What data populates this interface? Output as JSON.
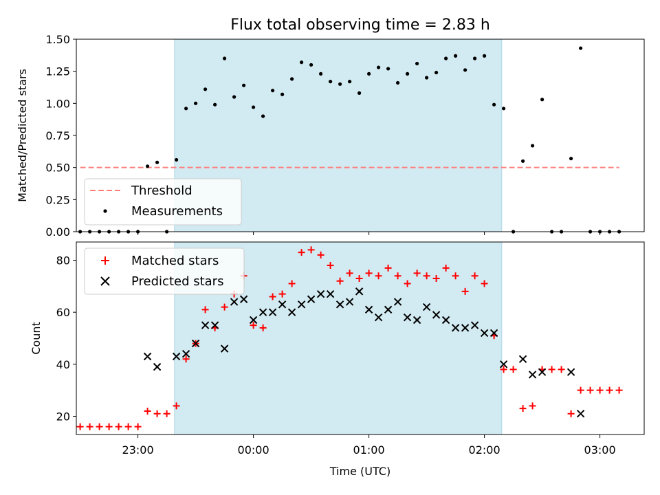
{
  "colors": {
    "span": "#add8e6",
    "threshold": "#ff7f7f",
    "measurement": "#000000",
    "matched": "#ff0000",
    "predicted": "#000000"
  },
  "chart_data": [
    {
      "type": "scatter",
      "panel": "top",
      "title": "Flux total observing time = 2.83 h",
      "xlabel": "",
      "ylabel": "Matched/Predicted stars",
      "ylim": [
        0,
        1.5
      ],
      "yticks": [
        "0.00",
        "0.25",
        "0.50",
        "0.75",
        "1.00",
        "1.25",
        "1.50"
      ],
      "xlim": [
        "22:28",
        "03:23"
      ],
      "shaded_span": [
        "23:19",
        "02:09"
      ],
      "threshold": {
        "name": "Threshold",
        "value": 0.5,
        "x_range": [
          "22:30",
          "03:10"
        ]
      },
      "legend_placement": "lower-left",
      "series": [
        {
          "name": "Measurements",
          "marker": "dot",
          "x": [
            "22:30",
            "22:35",
            "22:40",
            "22:45",
            "22:50",
            "22:55",
            "23:00",
            "23:05",
            "23:10",
            "23:15",
            "23:20",
            "23:25",
            "23:30",
            "23:35",
            "23:40",
            "23:45",
            "23:50",
            "23:55",
            "00:00",
            "00:05",
            "00:10",
            "00:15",
            "00:20",
            "00:25",
            "00:30",
            "00:35",
            "00:40",
            "00:45",
            "00:50",
            "00:55",
            "01:00",
            "01:05",
            "01:10",
            "01:15",
            "01:20",
            "01:25",
            "01:30",
            "01:35",
            "01:40",
            "01:45",
            "01:50",
            "01:55",
            "02:00",
            "02:05",
            "02:10",
            "02:15",
            "02:20",
            "02:25",
            "02:30",
            "02:35",
            "02:40",
            "02:45",
            "02:50",
            "02:55",
            "03:00",
            "03:05",
            "03:10"
          ],
          "y": [
            0,
            0,
            0,
            0,
            0,
            0,
            0,
            0.51,
            0.54,
            0,
            0.56,
            0.96,
            1.0,
            1.11,
            0.99,
            1.35,
            1.05,
            1.14,
            0.97,
            0.9,
            1.1,
            1.07,
            1.19,
            1.32,
            1.3,
            1.23,
            1.17,
            1.15,
            1.17,
            1.08,
            1.23,
            1.28,
            1.27,
            1.16,
            1.23,
            1.31,
            1.2,
            1.24,
            1.35,
            1.37,
            1.26,
            1.35,
            1.37,
            0.99,
            0.96,
            0,
            0.55,
            0.67,
            1.03,
            0,
            0,
            0.57,
            1.43,
            0,
            0,
            0,
            0
          ]
        }
      ]
    },
    {
      "type": "scatter",
      "panel": "bottom",
      "xlabel": "Time (UTC)",
      "ylabel": "Count",
      "ylim": [
        13,
        87
      ],
      "yticks": [
        "20",
        "40",
        "60",
        "80"
      ],
      "xlim": [
        "22:28",
        "03:23"
      ],
      "xticks": [
        "23:00",
        "00:00",
        "01:00",
        "02:00",
        "03:00"
      ],
      "shaded_span": [
        "23:19",
        "02:09"
      ],
      "legend_placement": "top-left",
      "series": [
        {
          "name": "Matched stars",
          "marker": "plus",
          "x": [
            "22:30",
            "22:35",
            "22:40",
            "22:45",
            "22:50",
            "22:55",
            "23:00",
            "23:05",
            "23:10",
            "23:15",
            "23:20",
            "23:25",
            "23:30",
            "23:35",
            "23:40",
            "23:45",
            "23:50",
            "23:55",
            "00:00",
            "00:05",
            "00:10",
            "00:15",
            "00:20",
            "00:25",
            "00:30",
            "00:35",
            "00:40",
            "00:45",
            "00:50",
            "00:55",
            "01:00",
            "01:05",
            "01:10",
            "01:15",
            "01:20",
            "01:25",
            "01:30",
            "01:35",
            "01:40",
            "01:45",
            "01:50",
            "01:55",
            "02:00",
            "02:05",
            "02:10",
            "02:15",
            "02:20",
            "02:25",
            "02:30",
            "02:35",
            "02:40",
            "02:45",
            "02:50",
            "02:55",
            "03:00",
            "03:05",
            "03:10"
          ],
          "y": [
            16,
            16,
            16,
            16,
            16,
            16,
            16,
            22,
            21,
            21,
            24,
            42,
            48,
            61,
            54,
            62,
            67,
            74,
            55,
            54,
            66,
            67,
            71,
            83,
            84,
            82,
            78,
            72,
            75,
            73,
            75,
            74,
            77,
            74,
            71,
            75,
            74,
            73,
            77,
            74,
            68,
            74,
            71,
            51,
            38,
            38,
            23,
            24,
            38,
            38,
            38,
            21,
            30,
            30,
            30,
            30,
            30
          ]
        },
        {
          "name": "Predicted stars",
          "marker": "x",
          "x": [
            "23:05",
            "23:10",
            "23:20",
            "23:25",
            "23:30",
            "23:35",
            "23:40",
            "23:45",
            "23:50",
            "23:55",
            "00:00",
            "00:05",
            "00:10",
            "00:15",
            "00:20",
            "00:25",
            "00:30",
            "00:35",
            "00:40",
            "00:45",
            "00:50",
            "00:55",
            "01:00",
            "01:05",
            "01:10",
            "01:15",
            "01:20",
            "01:25",
            "01:30",
            "01:35",
            "01:40",
            "01:45",
            "01:50",
            "01:55",
            "02:00",
            "02:05",
            "02:10",
            "02:20",
            "02:25",
            "02:30",
            "02:45",
            "02:50"
          ],
          "y": [
            43,
            39,
            43,
            44,
            48,
            55,
            55,
            46,
            64,
            65,
            57,
            60,
            60,
            63,
            60,
            63,
            65,
            67,
            67,
            63,
            64,
            68,
            61,
            58,
            61,
            64,
            58,
            57,
            62,
            59,
            57,
            54,
            54,
            55,
            52,
            52,
            40,
            42,
            36,
            37,
            37,
            21
          ]
        }
      ]
    }
  ]
}
